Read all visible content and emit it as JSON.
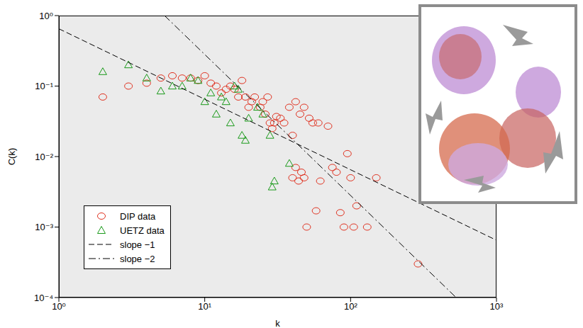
{
  "chart_data": {
    "type": "scatter",
    "log": true,
    "grid": false,
    "legend": "lower left",
    "x_label": "k",
    "y_label": "C(k)",
    "xlim": [
      1,
      1000
    ],
    "ylim": [
      0.0001,
      1
    ],
    "xticks": [
      {
        "value": 1,
        "label": "10⁰"
      },
      {
        "value": 10,
        "label": "10¹"
      },
      {
        "value": 100,
        "label": "10²"
      },
      {
        "value": 1000,
        "label": "10³"
      }
    ],
    "yticks": [
      {
        "value": 0.0001,
        "label": "10⁻⁴"
      },
      {
        "value": 0.001,
        "label": "10⁻³"
      },
      {
        "value": 0.01,
        "label": "10⁻²"
      },
      {
        "value": 0.1,
        "label": "10⁻¹"
      },
      {
        "value": 1,
        "label": "10⁰"
      }
    ],
    "series": [
      {
        "name": "DIP data",
        "type": "scatter",
        "marker": "circle",
        "color": "#e0301e",
        "x": [
          2,
          3,
          4,
          5,
          6,
          7,
          8,
          9,
          10,
          11,
          12,
          13,
          14,
          15,
          16,
          17,
          18,
          19,
          20,
          21,
          22,
          24,
          25,
          26,
          27,
          28,
          29,
          30,
          31,
          33,
          35,
          38,
          40,
          42,
          45,
          48,
          52,
          55,
          60,
          70,
          40,
          42,
          44,
          46,
          48,
          50,
          58,
          62,
          75,
          80,
          85,
          90,
          95,
          100,
          110,
          105,
          130,
          150,
          290
        ],
        "values": [
          0.07,
          0.1,
          0.11,
          0.13,
          0.14,
          0.13,
          0.13,
          0.12,
          0.14,
          0.11,
          0.1,
          0.08,
          0.09,
          0.1,
          0.09,
          0.07,
          0.12,
          0.07,
          0.05,
          0.06,
          0.07,
          0.05,
          0.06,
          0.04,
          0.07,
          0.03,
          0.025,
          0.03,
          0.037,
          0.035,
          0.03,
          0.05,
          0.02,
          0.06,
          0.04,
          0.05,
          0.035,
          0.03,
          0.03,
          0.027,
          0.005,
          0.007,
          0.0045,
          0.006,
          0.005,
          0.001,
          0.0017,
          0.0045,
          0.007,
          0.006,
          0.0016,
          0.001,
          0.011,
          0.005,
          0.002,
          0.001,
          0.001,
          0.005,
          0.0003
        ]
      },
      {
        "name": "UETZ data",
        "type": "scatter",
        "marker": "triangle",
        "color": "#1a9a1a",
        "x": [
          2,
          3,
          4,
          5,
          6,
          7,
          8,
          9,
          10,
          11,
          12,
          13,
          14,
          15,
          16,
          17,
          18,
          19,
          20,
          23,
          25,
          28,
          38,
          30,
          29
        ],
        "values": [
          0.16,
          0.2,
          0.13,
          0.085,
          0.1,
          0.1,
          0.13,
          0.12,
          0.06,
          0.08,
          0.04,
          0.07,
          0.06,
          0.03,
          0.1,
          0.09,
          0.02,
          0.017,
          0.035,
          0.05,
          0.04,
          0.02,
          0.008,
          0.0045,
          0.0037
        ]
      },
      {
        "name": "slope −1",
        "type": "line",
        "line_style": "dashed",
        "color": "#000000",
        "x": [
          1,
          1000
        ],
        "values": [
          0.65,
          0.00065
        ]
      },
      {
        "name": "slope −2",
        "type": "line",
        "line_style": "dashdot",
        "color": "#000000",
        "x": [
          5.3,
          529
        ],
        "values": [
          1,
          0.0001
        ]
      }
    ]
  }
}
